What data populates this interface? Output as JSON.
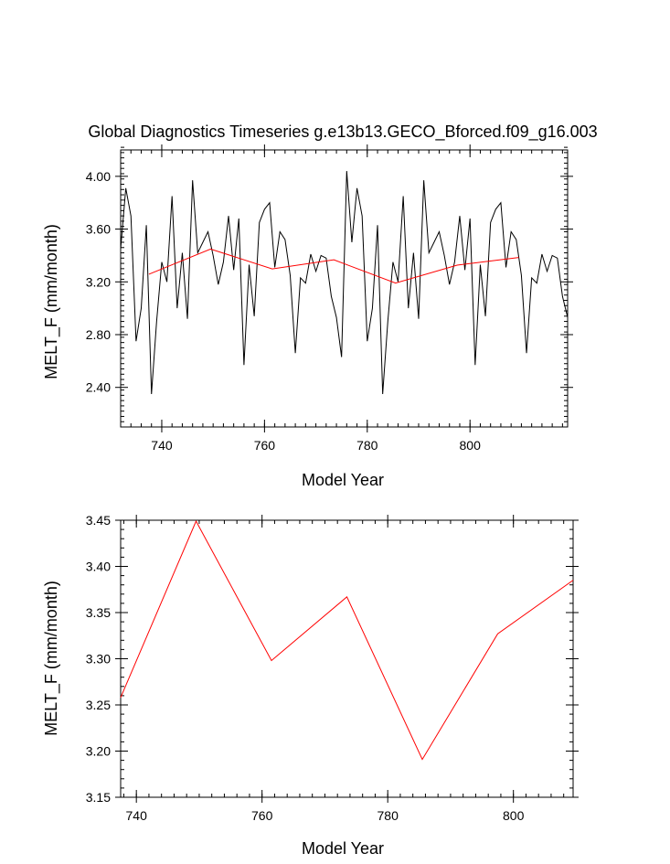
{
  "chart_data": [
    {
      "type": "line",
      "title": "Global Diagnostics Timeseries g.e13b13.GECO_Bforced.f09_g16.003",
      "xlabel": "Model Year",
      "ylabel": "MELT_F (mm/month)",
      "xlim": [
        732,
        819
      ],
      "ylim": [
        2.1,
        4.2
      ],
      "x_ticks": [
        740,
        760,
        780,
        800
      ],
      "x_tick_labels": [
        "740",
        "760",
        "780",
        "800"
      ],
      "y_ticks": [
        2.4,
        2.8,
        3.2,
        3.6,
        4.0
      ],
      "y_tick_labels": [
        "2.40",
        "2.80",
        "3.20",
        "3.60",
        "4.00"
      ],
      "grid": false,
      "series": [
        {
          "color": "#000000",
          "x_start": 732,
          "x_step": 1,
          "values": [
            3.45,
            3.91,
            3.7,
            2.75,
            3.0,
            3.63,
            2.35,
            2.9,
            3.35,
            3.2,
            3.85,
            3.0,
            3.42,
            2.92,
            3.97,
            3.42,
            3.5,
            3.58,
            3.4,
            3.18,
            3.35,
            3.7,
            3.29,
            3.68,
            2.57,
            3.33,
            2.94,
            3.65,
            3.75,
            3.8,
            3.31,
            3.58,
            3.52,
            3.25,
            2.66,
            3.23,
            3.19,
            3.41,
            3.28,
            3.4,
            3.38,
            3.09,
            2.93,
            2.63,
            4.04,
            3.5,
            3.91,
            3.7,
            2.75,
            3.0,
            3.63,
            2.35,
            2.9,
            3.35,
            3.2,
            3.85,
            3.0,
            3.42,
            2.92,
            3.97,
            3.42,
            3.5,
            3.58,
            3.4,
            3.18,
            3.35,
            3.7,
            3.29,
            3.68,
            2.57,
            3.33,
            2.94,
            3.65,
            3.75,
            3.8,
            3.31,
            3.58,
            3.52,
            3.25,
            2.66,
            3.23,
            3.19,
            3.41,
            3.28,
            3.4,
            3.38,
            3.09,
            2.93
          ]
        },
        {
          "color": "#ff0000",
          "x": [
            737.5,
            749.5,
            761.5,
            773.5,
            785.5,
            797.5,
            809.5
          ],
          "values": [
            3.258,
            3.449,
            3.298,
            3.367,
            3.191,
            3.327,
            3.385
          ]
        }
      ]
    },
    {
      "type": "line",
      "title": "",
      "xlabel": "Model Year",
      "ylabel": "MELT_F (mm/month)",
      "xlim": [
        737.5,
        809.5
      ],
      "ylim": [
        3.15,
        3.45
      ],
      "x_ticks": [
        740,
        760,
        780,
        800
      ],
      "x_tick_labels": [
        "740",
        "760",
        "780",
        "800"
      ],
      "y_ticks": [
        3.15,
        3.2,
        3.25,
        3.3,
        3.35,
        3.4,
        3.45
      ],
      "y_tick_labels": [
        "3.15",
        "3.20",
        "3.25",
        "3.30",
        "3.35",
        "3.40",
        "3.45"
      ],
      "grid": false,
      "series": [
        {
          "color": "#ff0000",
          "x": [
            737.5,
            749.5,
            761.5,
            773.5,
            785.5,
            797.5,
            809.5
          ],
          "values": [
            3.258,
            3.449,
            3.298,
            3.367,
            3.191,
            3.327,
            3.385
          ]
        }
      ]
    }
  ]
}
